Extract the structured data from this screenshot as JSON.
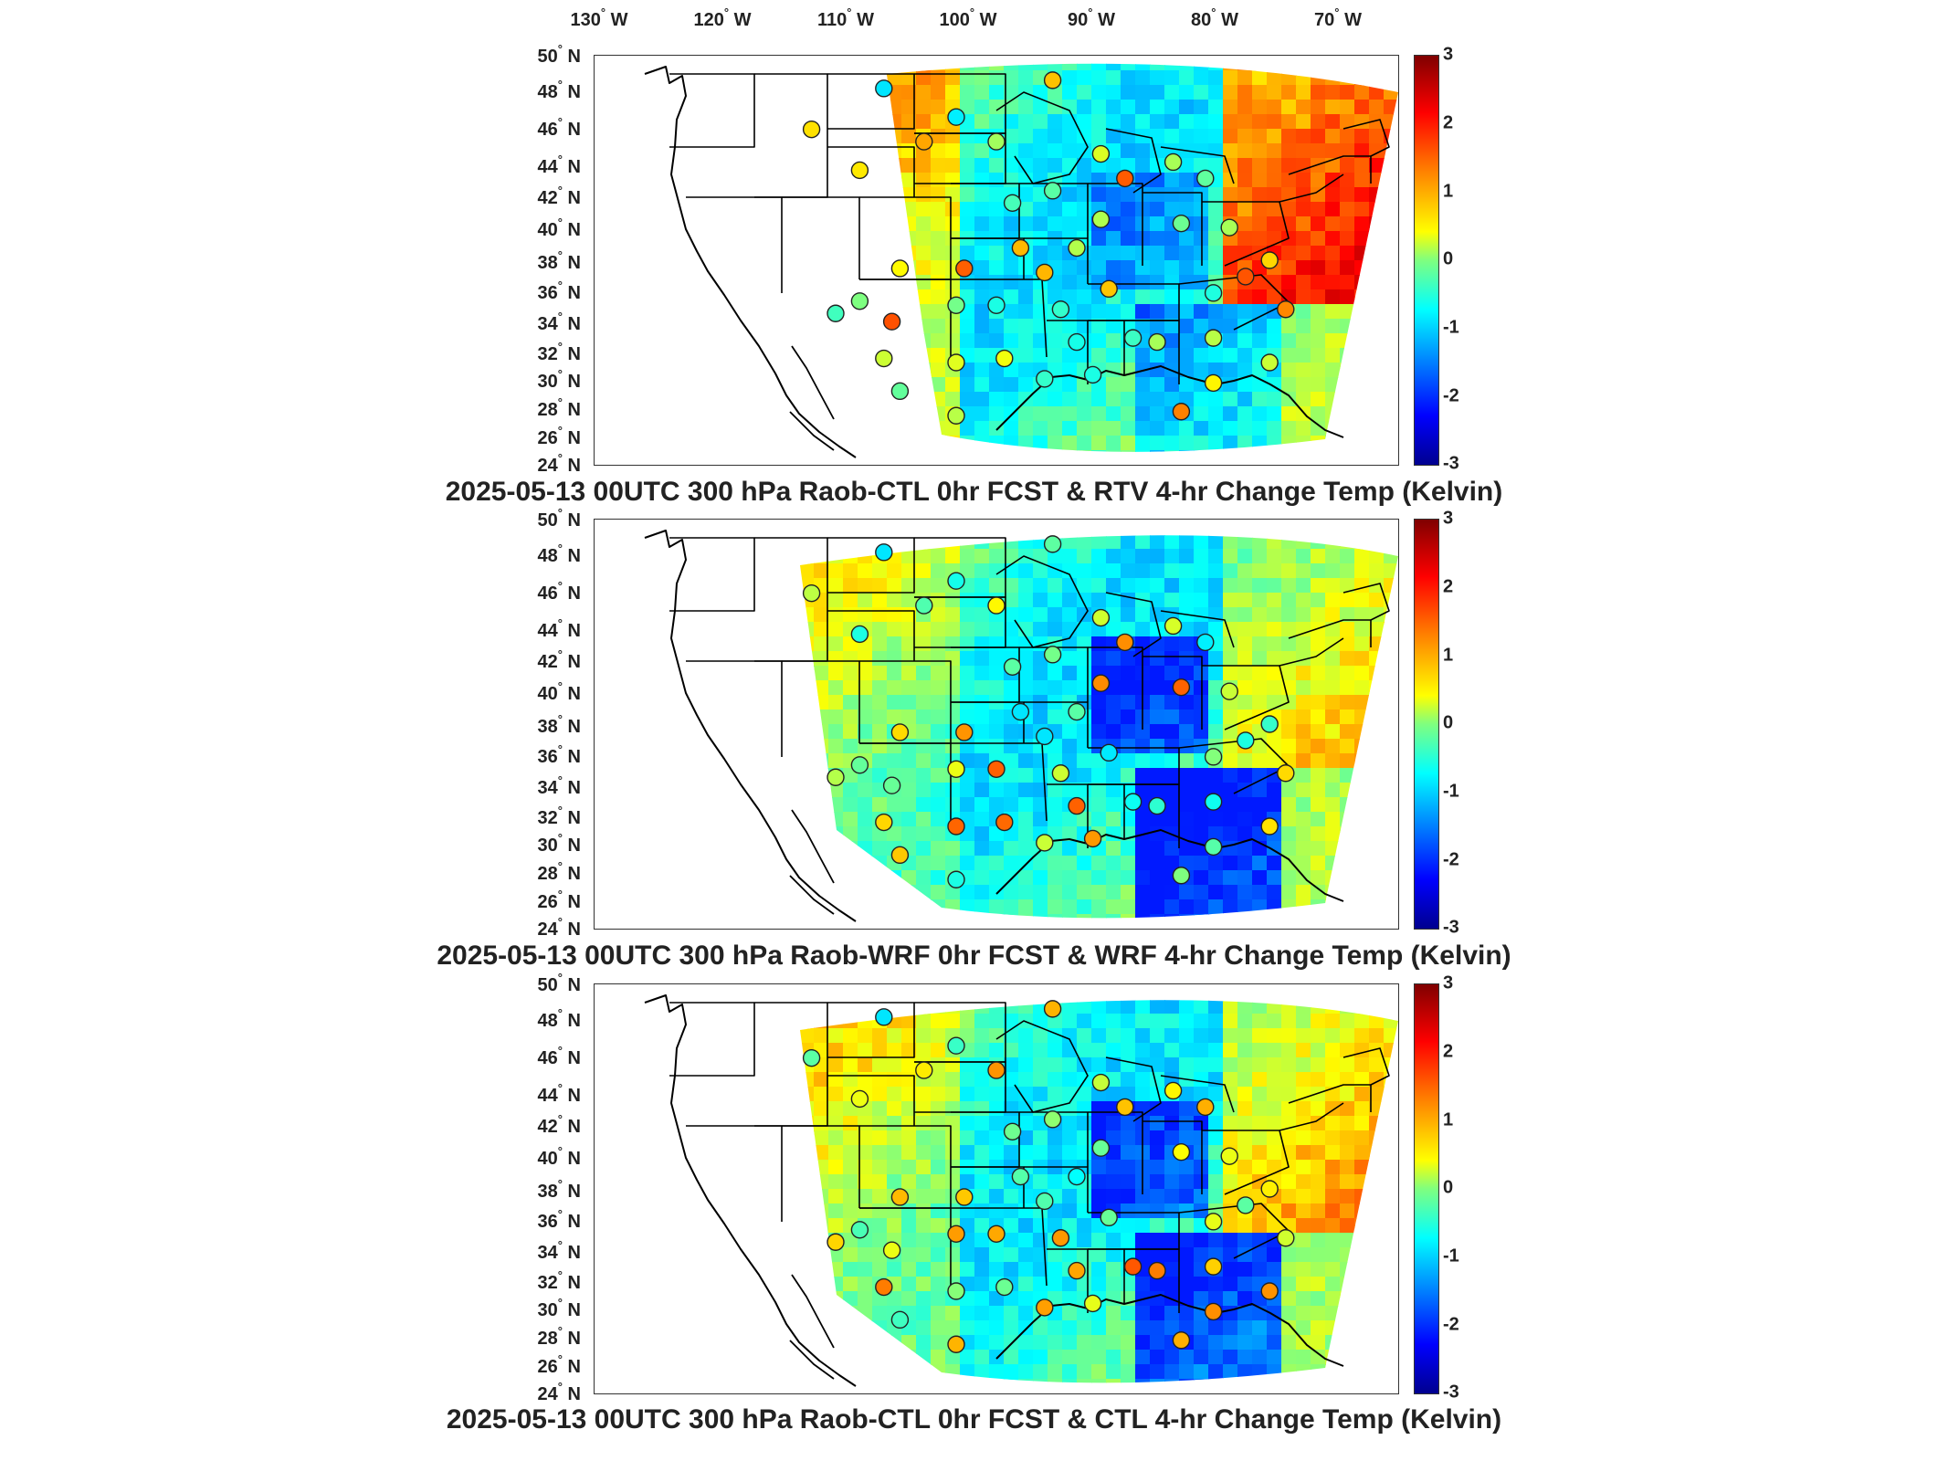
{
  "lon_labels": [
    {
      "deg": "130",
      "hem": "W"
    },
    {
      "deg": "120",
      "hem": "W"
    },
    {
      "deg": "110",
      "hem": "W"
    },
    {
      "deg": "100",
      "hem": "W"
    },
    {
      "deg": "90",
      "hem": "W"
    },
    {
      "deg": "80",
      "hem": "W"
    },
    {
      "deg": "70",
      "hem": "W"
    }
  ],
  "lat_labels": [
    {
      "deg": "50",
      "hem": "N"
    },
    {
      "deg": "48",
      "hem": "N"
    },
    {
      "deg": "46",
      "hem": "N"
    },
    {
      "deg": "44",
      "hem": "N"
    },
    {
      "deg": "42",
      "hem": "N"
    },
    {
      "deg": "40",
      "hem": "N"
    },
    {
      "deg": "38",
      "hem": "N"
    },
    {
      "deg": "36",
      "hem": "N"
    },
    {
      "deg": "34",
      "hem": "N"
    },
    {
      "deg": "32",
      "hem": "N"
    },
    {
      "deg": "30",
      "hem": "N"
    },
    {
      "deg": "28",
      "hem": "N"
    },
    {
      "deg": "26",
      "hem": "N"
    },
    {
      "deg": "24",
      "hem": "N"
    }
  ],
  "colorbar": {
    "ticks": [
      "3",
      "2",
      "1",
      "0",
      "-1",
      "-2",
      "-3"
    ],
    "range": [
      -3,
      3
    ],
    "colors": [
      "#00008f",
      "#0000ff",
      "#007fff",
      "#00ffff",
      "#7fff7f",
      "#ffff00",
      "#ff7f00",
      "#ff0000",
      "#800000"
    ]
  },
  "panels": [
    {
      "title": "2025-05-13 00UTC 300 hPa Raob-CTL 0hr FCST & RTV 4-hr Change Temp (Kelvin)"
    },
    {
      "title": "2025-05-13 00UTC 300 hPa Raob-WRF 0hr FCST & WRF 4-hr Change Temp (Kelvin)"
    },
    {
      "title": "2025-05-13 00UTC 300 hPa Raob-CTL 0hr FCST & CTL 4-hr Change Temp (Kelvin)"
    }
  ],
  "map": {
    "region": "Contiguous United States",
    "lon_range": [
      -135,
      -65
    ],
    "lat_range": [
      24,
      50
    ],
    "field": "300 hPa temperature difference (Kelvin)",
    "overlay": "raob station circles"
  }
}
